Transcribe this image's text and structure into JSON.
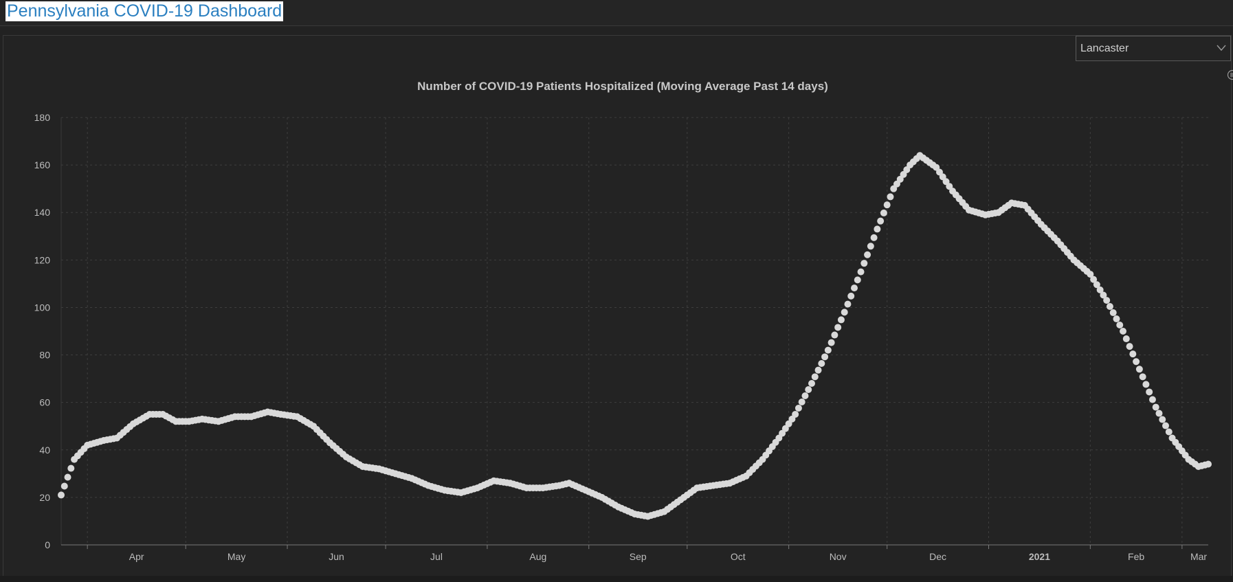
{
  "header": {
    "title": "Pennsylvania COVID-19 Dashboard"
  },
  "filter": {
    "selected": "Lancaster",
    "chevron_icon": "chevron-down-icon"
  },
  "chart_menu": {
    "icon": "menu-icon"
  },
  "colors": {
    "background": "#222222",
    "title_link": "#2a7fc0",
    "points": "#d9d9d9",
    "text": "#c8c8c8",
    "grid": "#3e3e3e"
  },
  "chart_data": {
    "type": "scatter",
    "title": "Number of COVID-19 Patients Hospitalized (Moving Average Past 14 days)",
    "xlabel": "",
    "ylabel": "",
    "ylim": [
      0,
      180
    ],
    "y_ticks": [
      0,
      20,
      40,
      60,
      80,
      100,
      120,
      140,
      160,
      180
    ],
    "x_range": [
      "2020-03-24",
      "2021-03-09"
    ],
    "x_tick_labels": [
      {
        "label": "Apr",
        "date": "2020-04-01",
        "bold": false
      },
      {
        "label": "May",
        "date": "2020-05-01",
        "bold": false
      },
      {
        "label": "Jun",
        "date": "2020-06-01",
        "bold": false
      },
      {
        "label": "Jul",
        "date": "2020-07-01",
        "bold": false
      },
      {
        "label": "Aug",
        "date": "2020-08-01",
        "bold": false
      },
      {
        "label": "Sep",
        "date": "2020-09-01",
        "bold": false
      },
      {
        "label": "Oct",
        "date": "2020-10-01",
        "bold": false
      },
      {
        "label": "Nov",
        "date": "2020-11-01",
        "bold": false
      },
      {
        "label": "Dec",
        "date": "2020-12-01",
        "bold": false
      },
      {
        "label": "2021",
        "date": "2021-01-01",
        "bold": true
      },
      {
        "label": "Feb",
        "date": "2021-02-01",
        "bold": false
      },
      {
        "label": "Mar",
        "date": "2021-03-01",
        "bold": false
      }
    ],
    "grid": true,
    "series": [
      {
        "points": [
          [
            "2020-03-24",
            21
          ],
          [
            "2020-03-28",
            36
          ],
          [
            "2020-04-01",
            42
          ],
          [
            "2020-04-06",
            44
          ],
          [
            "2020-04-10",
            45
          ],
          [
            "2020-04-15",
            51
          ],
          [
            "2020-04-20",
            55
          ],
          [
            "2020-04-24",
            55
          ],
          [
            "2020-04-28",
            52
          ],
          [
            "2020-05-02",
            52
          ],
          [
            "2020-05-06",
            53
          ],
          [
            "2020-05-11",
            52
          ],
          [
            "2020-05-16",
            54
          ],
          [
            "2020-05-21",
            54
          ],
          [
            "2020-05-26",
            56
          ],
          [
            "2020-05-30",
            55
          ],
          [
            "2020-06-04",
            54
          ],
          [
            "2020-06-09",
            50
          ],
          [
            "2020-06-14",
            43
          ],
          [
            "2020-06-19",
            37
          ],
          [
            "2020-06-24",
            33
          ],
          [
            "2020-06-29",
            32
          ],
          [
            "2020-07-04",
            30
          ],
          [
            "2020-07-09",
            28
          ],
          [
            "2020-07-14",
            25
          ],
          [
            "2020-07-19",
            23
          ],
          [
            "2020-07-24",
            22
          ],
          [
            "2020-07-29",
            24
          ],
          [
            "2020-08-03",
            27
          ],
          [
            "2020-08-08",
            26
          ],
          [
            "2020-08-13",
            24
          ],
          [
            "2020-08-18",
            24
          ],
          [
            "2020-08-23",
            25
          ],
          [
            "2020-08-26",
            26
          ],
          [
            "2020-08-31",
            23
          ],
          [
            "2020-09-05",
            20
          ],
          [
            "2020-09-10",
            16
          ],
          [
            "2020-09-15",
            13
          ],
          [
            "2020-09-19",
            12
          ],
          [
            "2020-09-24",
            14
          ],
          [
            "2020-09-29",
            19
          ],
          [
            "2020-10-04",
            24
          ],
          [
            "2020-10-09",
            25
          ],
          [
            "2020-10-14",
            26
          ],
          [
            "2020-10-19",
            29
          ],
          [
            "2020-10-24",
            36
          ],
          [
            "2020-10-29",
            45
          ],
          [
            "2020-11-03",
            55
          ],
          [
            "2020-11-08",
            68
          ],
          [
            "2020-11-13",
            82
          ],
          [
            "2020-11-18",
            98
          ],
          [
            "2020-11-23",
            115
          ],
          [
            "2020-11-28",
            133
          ],
          [
            "2020-12-03",
            150
          ],
          [
            "2020-12-08",
            160
          ],
          [
            "2020-12-11",
            164
          ],
          [
            "2020-12-16",
            159
          ],
          [
            "2020-12-21",
            149
          ],
          [
            "2020-12-26",
            141
          ],
          [
            "2020-12-31",
            139
          ],
          [
            "2021-01-04",
            140
          ],
          [
            "2021-01-08",
            144
          ],
          [
            "2021-01-12",
            143
          ],
          [
            "2021-01-17",
            135
          ],
          [
            "2021-01-22",
            128
          ],
          [
            "2021-01-27",
            120
          ],
          [
            "2021-02-01",
            114
          ],
          [
            "2021-02-06",
            103
          ],
          [
            "2021-02-11",
            90
          ],
          [
            "2021-02-16",
            74
          ],
          [
            "2021-02-21",
            58
          ],
          [
            "2021-02-26",
            45
          ],
          [
            "2021-03-03",
            36
          ],
          [
            "2021-03-06",
            33
          ],
          [
            "2021-03-09",
            34
          ]
        ]
      }
    ]
  }
}
